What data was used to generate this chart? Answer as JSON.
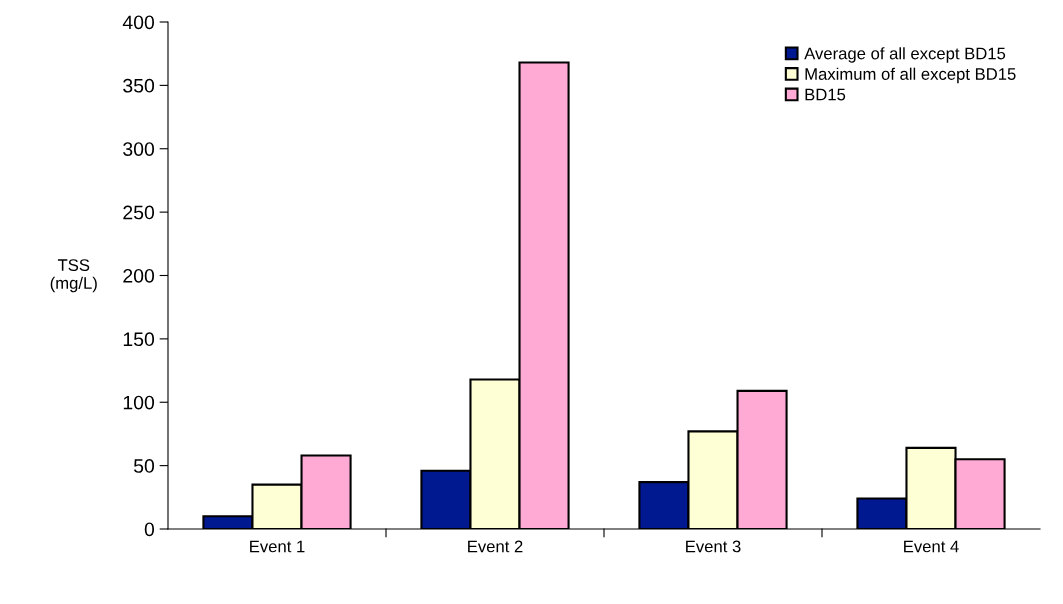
{
  "chart_data": {
    "type": "bar",
    "ylabel": "TSS\n(mg/L)",
    "categories": [
      "Event 1",
      "Event 2",
      "Event 3",
      "Event 4"
    ],
    "series": [
      {
        "name": "Average of all except BD15",
        "color": "#001890",
        "values": [
          10,
          46,
          37,
          24
        ]
      },
      {
        "name": "Maximum of all except BD15",
        "color": "#ffffd5",
        "values": [
          35,
          118,
          77,
          64
        ]
      },
      {
        "name": "BD15",
        "color": "#ffaad5",
        "values": [
          58,
          368,
          109,
          55
        ]
      }
    ],
    "ylim": [
      0,
      400
    ],
    "yticks": [
      0,
      50,
      100,
      150,
      200,
      250,
      300,
      350,
      400
    ],
    "grid": false,
    "legend": "top right"
  }
}
